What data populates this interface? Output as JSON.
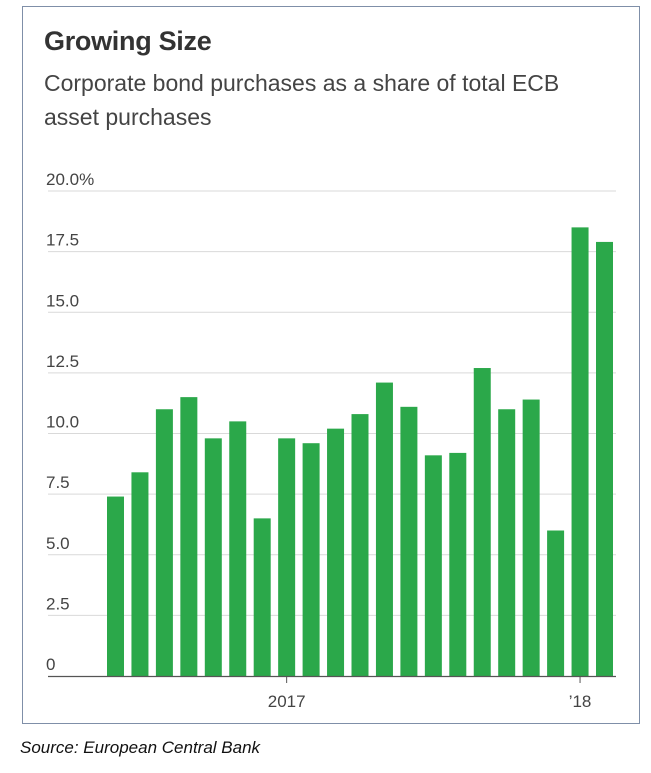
{
  "title": "Growing Size",
  "subtitle": "Corporate bond purchases as a share of total ECB asset purchases",
  "source": "Source: European Central Bank",
  "colors": {
    "bar": "#2ba84a",
    "grid": "#d9d9d9",
    "axis": "#555555"
  },
  "chart_data": {
    "type": "bar",
    "ylim": [
      0,
      20
    ],
    "y_ticks": [
      "20.0%",
      "17.5",
      "15.0",
      "12.5",
      "10.0",
      "7.5",
      "5.0",
      "2.5",
      "0"
    ],
    "y_tick_values": [
      20,
      17.5,
      15,
      12.5,
      10,
      7.5,
      5,
      2.5,
      0
    ],
    "x_tick_labels": [
      {
        "label": "2017",
        "index": 7
      },
      {
        "label": "’18",
        "index": 19
      }
    ],
    "grid": true,
    "values": [
      7.4,
      8.4,
      11.0,
      11.5,
      9.8,
      10.5,
      6.5,
      9.8,
      9.6,
      10.2,
      10.8,
      12.1,
      11.1,
      9.1,
      9.2,
      12.7,
      11.0,
      11.4,
      6.0,
      18.5,
      17.9
    ]
  }
}
